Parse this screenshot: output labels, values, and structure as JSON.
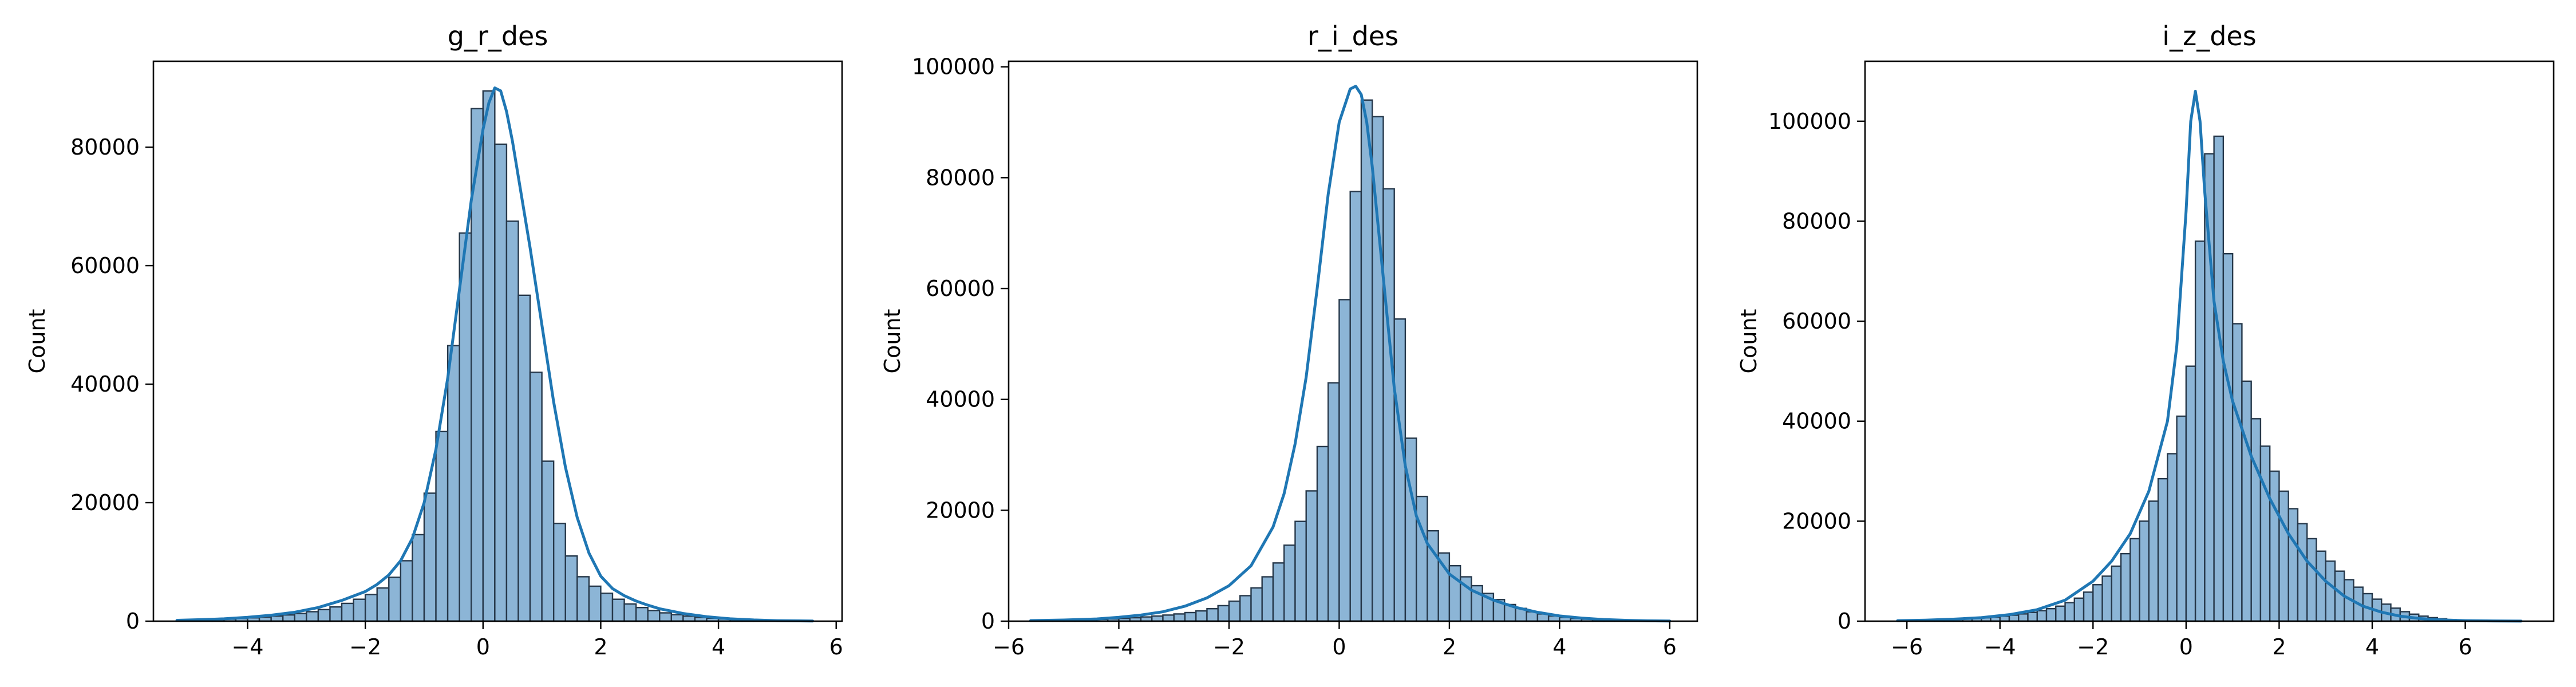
{
  "chart_data": [
    {
      "type": "bar",
      "title": "g_r_des",
      "xlabel": "",
      "ylabel": "Count",
      "xlim": [
        -5.6,
        6.1
      ],
      "ylim": [
        0,
        94500
      ],
      "xticks": [
        -4,
        -2,
        0,
        2,
        4,
        6
      ],
      "xtick_labels": [
        "−4",
        "−2",
        "0",
        "2",
        "4",
        "6"
      ],
      "yticks": [
        0,
        20000,
        40000,
        60000,
        80000
      ],
      "ytick_labels": [
        "0",
        "20000",
        "40000",
        "60000",
        "80000"
      ],
      "grid": false,
      "bin_start": -5.2,
      "bin_width": 0.2,
      "values": [
        120,
        160,
        210,
        280,
        350,
        450,
        560,
        700,
        860,
        1050,
        1300,
        1600,
        1950,
        2400,
        3000,
        3700,
        4500,
        5600,
        7400,
        10200,
        14600,
        21600,
        32000,
        46500,
        65500,
        86500,
        89500,
        80500,
        67500,
        55000,
        42000,
        27000,
        16500,
        11000,
        7500,
        5900,
        4700,
        3700,
        2900,
        2300,
        1800,
        1400,
        1100,
        850,
        650,
        500,
        380,
        280,
        200,
        140,
        100,
        70,
        50,
        40
      ],
      "kde": {
        "x": [
          -5.2,
          -4.8,
          -4.4,
          -4.0,
          -3.6,
          -3.2,
          -2.8,
          -2.4,
          -2.0,
          -1.8,
          -1.6,
          -1.4,
          -1.2,
          -1.0,
          -0.8,
          -0.6,
          -0.4,
          -0.2,
          0.0,
          0.1,
          0.2,
          0.3,
          0.4,
          0.5,
          0.6,
          0.8,
          1.0,
          1.2,
          1.4,
          1.6,
          1.8,
          2.0,
          2.2,
          2.4,
          2.6,
          2.8,
          3.0,
          3.4,
          3.8,
          4.2,
          4.6,
          5.0,
          5.6
        ],
        "y": [
          150,
          250,
          400,
          650,
          1000,
          1500,
          2300,
          3500,
          5000,
          6200,
          7800,
          10200,
          14000,
          20000,
          29000,
          41000,
          56000,
          71000,
          83000,
          87500,
          90000,
          89500,
          86000,
          81000,
          75000,
          63000,
          50000,
          37000,
          26000,
          17500,
          11500,
          7600,
          5500,
          4300,
          3400,
          2700,
          2100,
          1300,
          750,
          400,
          200,
          90,
          30
        ]
      },
      "bar_fill": "#8cb5d6",
      "bar_edge": "#26384a",
      "line_color": "#1f77b4"
    },
    {
      "type": "bar",
      "title": "r_i_des",
      "xlabel": "",
      "ylabel": "Count",
      "xlim": [
        -6.0,
        6.5
      ],
      "ylim": [
        0,
        101000
      ],
      "xticks": [
        -6,
        -4,
        -2,
        0,
        2,
        4,
        6
      ],
      "xtick_labels": [
        "−6",
        "−4",
        "−2",
        "0",
        "2",
        "4",
        "6"
      ],
      "yticks": [
        0,
        20000,
        40000,
        60000,
        80000,
        100000
      ],
      "ytick_labels": [
        "0",
        "20000",
        "40000",
        "60000",
        "80000",
        "100000"
      ],
      "grid": false,
      "bin_start": -5.6,
      "bin_width": 0.2,
      "values": [
        80,
        100,
        130,
        170,
        210,
        260,
        330,
        410,
        500,
        620,
        760,
        920,
        1100,
        1300,
        1550,
        1850,
        2250,
        2800,
        3600,
        4600,
        6000,
        8000,
        10500,
        13700,
        18000,
        23500,
        31500,
        43000,
        58000,
        77500,
        94000,
        91000,
        78000,
        54500,
        33000,
        22500,
        16300,
        12300,
        10000,
        8000,
        6400,
        5000,
        3900,
        3000,
        2300,
        1700,
        1300,
        950,
        700,
        500,
        370,
        270,
        190,
        130,
        90,
        60,
        40,
        25
      ],
      "kde": {
        "x": [
          -5.6,
          -5.0,
          -4.4,
          -4.0,
          -3.6,
          -3.2,
          -2.8,
          -2.4,
          -2.0,
          -1.6,
          -1.2,
          -1.0,
          -0.8,
          -0.6,
          -0.4,
          -0.2,
          0.0,
          0.2,
          0.3,
          0.4,
          0.5,
          0.6,
          0.8,
          1.0,
          1.2,
          1.4,
          1.6,
          2.0,
          2.4,
          2.8,
          3.2,
          3.6,
          4.0,
          4.4,
          4.8,
          5.2,
          5.6,
          6.0
        ],
        "y": [
          100,
          200,
          400,
          700,
          1100,
          1700,
          2700,
          4200,
          6400,
          10000,
          17000,
          23000,
          32000,
          44000,
          60000,
          77000,
          90000,
          96000,
          96500,
          95000,
          90000,
          82000,
          62000,
          42000,
          28000,
          19000,
          14000,
          8500,
          5600,
          3800,
          2500,
          1600,
          950,
          550,
          300,
          150,
          70,
          30
        ]
      },
      "bar_fill": "#8cb5d6",
      "bar_edge": "#26384a",
      "line_color": "#1f77b4"
    },
    {
      "type": "bar",
      "title": "i_z_des",
      "xlabel": "",
      "ylabel": "Count",
      "xlim": [
        -6.9,
        7.9
      ],
      "ylim": [
        0,
        112000
      ],
      "xticks": [
        -6,
        -4,
        -2,
        0,
        2,
        4,
        6
      ],
      "xtick_labels": [
        "−6",
        "−4",
        "−2",
        "0",
        "2",
        "4",
        "6"
      ],
      "yticks": [
        0,
        20000,
        40000,
        60000,
        80000,
        100000
      ],
      "ytick_labels": [
        "0",
        "20000",
        "40000",
        "60000",
        "80000",
        "100000"
      ],
      "grid": false,
      "bin_start": -6.2,
      "bin_width": 0.2,
      "values": [
        100,
        120,
        150,
        190,
        240,
        300,
        370,
        460,
        560,
        680,
        830,
        1000,
        1200,
        1450,
        1750,
        2100,
        2500,
        3000,
        3700,
        4600,
        5800,
        7300,
        9000,
        11000,
        13500,
        16500,
        20000,
        24000,
        28500,
        33500,
        41000,
        51000,
        76000,
        93500,
        97000,
        73500,
        59500,
        48000,
        40500,
        35000,
        30000,
        26000,
        22500,
        19500,
        16500,
        14000,
        12000,
        10000,
        8300,
        6800,
        5500,
        4400,
        3400,
        2600,
        1900,
        1400,
        1000,
        700,
        480,
        320,
        210,
        130,
        80,
        50,
        30,
        20
      ],
      "kde": {
        "x": [
          -6.2,
          -5.6,
          -5.0,
          -4.4,
          -3.8,
          -3.2,
          -2.6,
          -2.0,
          -1.6,
          -1.2,
          -0.8,
          -0.4,
          -0.2,
          0.0,
          0.1,
          0.2,
          0.3,
          0.4,
          0.6,
          0.8,
          1.0,
          1.4,
          1.8,
          2.2,
          2.6,
          3.0,
          3.4,
          3.8,
          4.2,
          4.6,
          5.0,
          5.4,
          6.0,
          6.6,
          7.2
        ],
        "y": [
          100,
          200,
          400,
          700,
          1300,
          2300,
          4200,
          8000,
          12000,
          17500,
          26000,
          40000,
          55000,
          82000,
          100000,
          106000,
          100000,
          86000,
          64000,
          52000,
          44000,
          33000,
          24500,
          17500,
          12000,
          8000,
          5000,
          3000,
          1800,
          1000,
          550,
          280,
          100,
          40,
          15
        ]
      },
      "bar_fill": "#8cb5d6",
      "bar_edge": "#26384a",
      "line_color": "#1f77b4"
    }
  ]
}
